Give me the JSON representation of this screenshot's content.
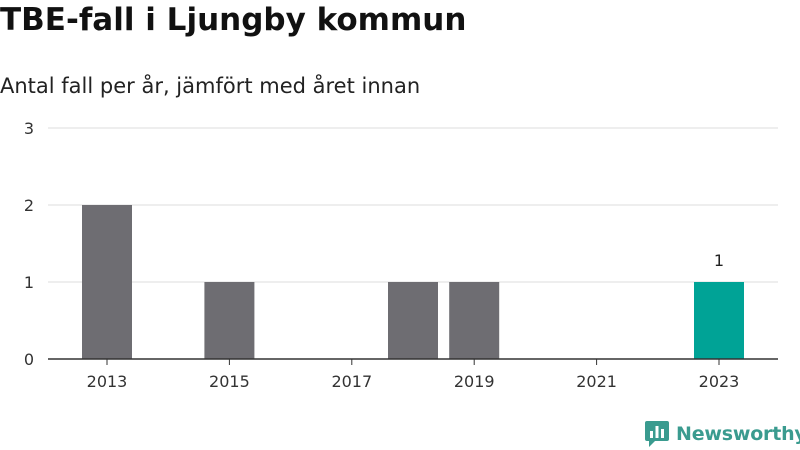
{
  "title": "TBE-fall i Ljungby kommun",
  "subtitle": "Antal fall per år, jämfört med året innan",
  "brand": {
    "name": "Newsworthy",
    "color": "#3a9b8f",
    "icon": "newsworthy-logo-icon"
  },
  "colors": {
    "bar": "#6e6d72",
    "highlight": "#00a396",
    "axis": "#333333",
    "grid": "#dddddd"
  },
  "chart_data": {
    "type": "bar",
    "title": "TBE-fall i Ljungby kommun",
    "subtitle": "Antal fall per år, jämfört med året innan",
    "categories": [
      "2013",
      "2014",
      "2015",
      "2016",
      "2017",
      "2018",
      "2019",
      "2020",
      "2021",
      "2022",
      "2023"
    ],
    "values": [
      2,
      0,
      1,
      0,
      0,
      1,
      1,
      0,
      0,
      0,
      1
    ],
    "highlight_category": "2023",
    "data_labels": [
      {
        "category": "2023",
        "text": "1"
      }
    ],
    "x_ticks": [
      "2013",
      "2015",
      "2017",
      "2019",
      "2021",
      "2023"
    ],
    "y_ticks": [
      0,
      1,
      2,
      3
    ],
    "ylim": [
      0,
      3
    ],
    "xlabel": "",
    "ylabel": "",
    "grid": true,
    "legend": false
  }
}
